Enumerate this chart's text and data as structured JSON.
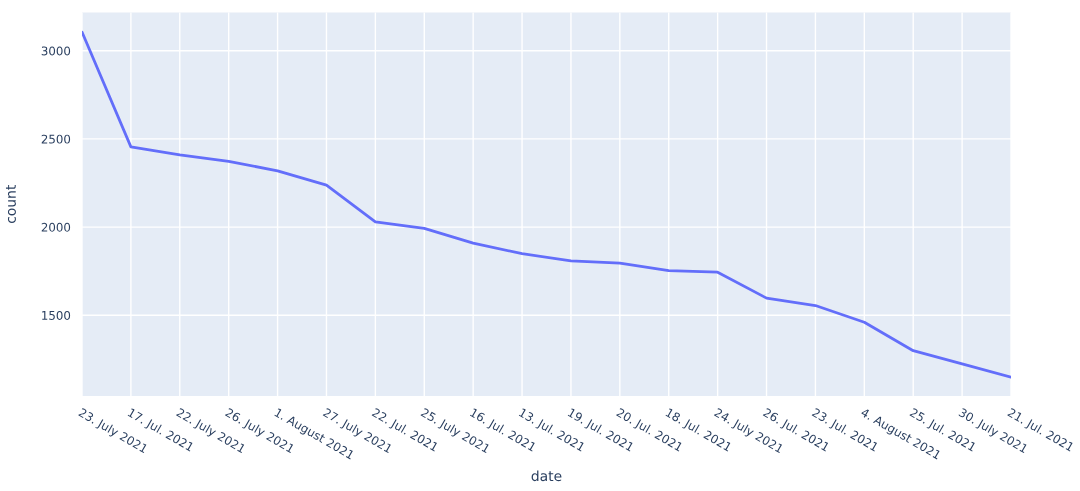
{
  "chart_data": {
    "type": "line",
    "xlabel": "date",
    "ylabel": "count",
    "categories": [
      "23. July 2021",
      "17. Jul. 2021",
      "22. July 2021",
      "26. July 2021",
      "1. August 2021",
      "27. July 2021",
      "22. Jul. 2021",
      "25. July 2021",
      "16. Jul. 2021",
      "13. Jul. 2021",
      "19. Jul. 2021",
      "20. Jul. 2021",
      "18. Jul. 2021",
      "24. July 2021",
      "26. Jul. 2021",
      "23. Jul. 2021",
      "4. August 2021",
      "25. Jul. 2021",
      "30. July 2021",
      "21. Jul. 2021"
    ],
    "series": [
      {
        "color": "#636efa",
        "values": [
          3106,
          2455,
          2410,
          2373,
          2319,
          2238,
          2029,
          1993,
          1909,
          1849,
          1808,
          1796,
          1753,
          1744,
          1597,
          1555,
          1460,
          1299,
          1224,
          1149
        ]
      }
    ],
    "ylim": [
      1042,
      3217
    ],
    "yticks": [
      1500,
      2000,
      2500,
      3000
    ],
    "grid": true,
    "marker": "none",
    "line_style": "solid"
  }
}
